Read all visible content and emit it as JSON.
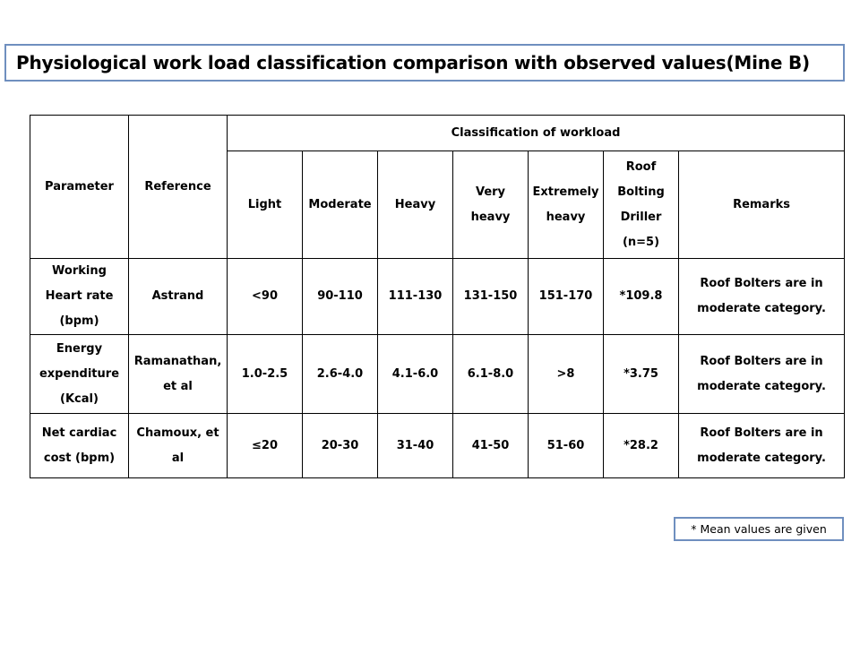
{
  "title": "Physiological work load classification comparison with observed values(Mine B)",
  "table": {
    "header": {
      "parameter": "Parameter",
      "reference": "Reference",
      "classification": "Classification of workload",
      "columns": [
        "Light",
        "Moderate",
        "Heavy",
        "Very heavy",
        "Extremely heavy",
        "Roof Bolting Driller (n=5)",
        "Remarks"
      ]
    },
    "rows": [
      {
        "parameter": "Working Heart rate (bpm)",
        "reference": "Astrand",
        "values": [
          "<90",
          "90-110",
          "111-130",
          "131-150",
          "151-170",
          "*109.8"
        ],
        "remarks": "Roof Bolters are in moderate category."
      },
      {
        "parameter": "Energy expenditure (Kcal)",
        "reference": "Ramanathan, et al",
        "values": [
          "1.0-2.5",
          "2.6-4.0",
          "4.1-6.0",
          "6.1-8.0",
          ">8",
          "*3.75"
        ],
        "remarks": "Roof Bolters are in moderate category."
      },
      {
        "parameter": "Net cardiac cost (bpm)",
        "reference": "Chamoux, et al",
        "values": [
          "≤20",
          "20-30",
          "31-40",
          "41-50",
          "51-60",
          "*28.2"
        ],
        "remarks": "Roof Bolters are in moderate category."
      }
    ]
  },
  "note": "* Mean values are given",
  "colors": {
    "box_border": "#6f8fbf",
    "table_border": "#000000"
  }
}
